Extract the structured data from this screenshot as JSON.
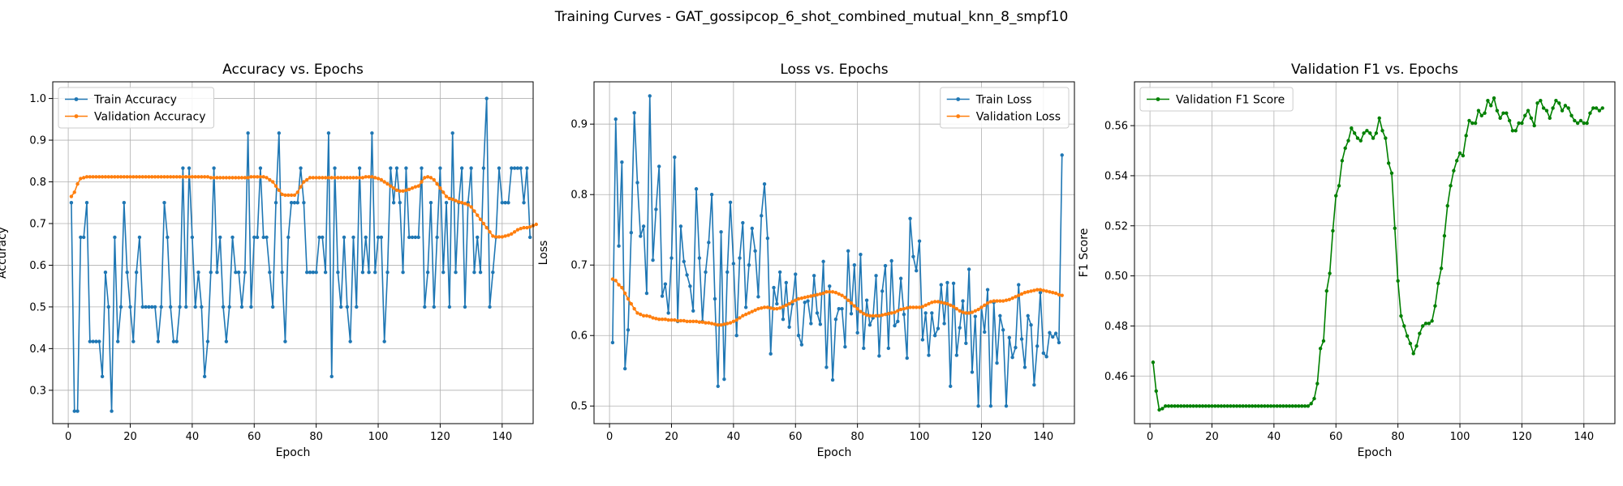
{
  "figure": {
    "title": "Training Curves - GAT_gossipcop_6_shot_combined_mutual_knn_8_smpf10"
  },
  "colors": {
    "train": "#1f77b4",
    "validation": "#ff7f0e",
    "f1": "#008000"
  },
  "chart_data": [
    {
      "type": "line",
      "title": "Accuracy vs. Epochs",
      "xlabel": "Epoch",
      "ylabel": "Accuracy",
      "xlim": [
        -5,
        150
      ],
      "ylim": [
        0.22,
        1.04
      ],
      "xticks": [
        0,
        20,
        40,
        60,
        80,
        100,
        120,
        140
      ],
      "yticks": [
        0.3,
        0.4,
        0.5,
        0.6,
        0.7,
        0.8,
        0.9,
        1.0
      ],
      "grid": true,
      "legend_position": "upper-left",
      "series": [
        {
          "name": "Train Accuracy",
          "color": "#1f77b4",
          "values": [
            0.75,
            0.25,
            0.25,
            0.667,
            0.667,
            0.75,
            0.417,
            0.417,
            0.417,
            0.417,
            0.333,
            0.583,
            0.5,
            0.25,
            0.667,
            0.417,
            0.5,
            0.75,
            0.583,
            0.5,
            0.417,
            0.583,
            0.667,
            0.5,
            0.5,
            0.5,
            0.5,
            0.5,
            0.417,
            0.5,
            0.75,
            0.667,
            0.5,
            0.417,
            0.417,
            0.5,
            0.833,
            0.5,
            0.833,
            0.667,
            0.5,
            0.583,
            0.5,
            0.333,
            0.417,
            0.583,
            0.833,
            0.583,
            0.667,
            0.5,
            0.417,
            0.5,
            0.667,
            0.583,
            0.583,
            0.5,
            0.583,
            0.917,
            0.5,
            0.667,
            0.667,
            0.833,
            0.667,
            0.667,
            0.583,
            0.5,
            0.75,
            0.917,
            0.583,
            0.417,
            0.667,
            0.75,
            0.75,
            0.75,
            0.833,
            0.75,
            0.583,
            0.583,
            0.583,
            0.583,
            0.667,
            0.667,
            0.583,
            0.917,
            0.333,
            0.833,
            0.583,
            0.5,
            0.667,
            0.5,
            0.417,
            0.667,
            0.5,
            0.833,
            0.583,
            0.667,
            0.583,
            0.917,
            0.583,
            0.667,
            0.667,
            0.417,
            0.583,
            0.833,
            0.75,
            0.833,
            0.75,
            0.583,
            0.833,
            0.667,
            0.667,
            0.667,
            0.667,
            0.833,
            0.5,
            0.583,
            0.75,
            0.5,
            0.667,
            0.833,
            0.583,
            0.75,
            0.5,
            0.917,
            0.583,
            0.75,
            0.833,
            0.5,
            0.75,
            0.833,
            0.583,
            0.667,
            0.583,
            0.833,
            1.0,
            0.5,
            0.583,
            0.667,
            0.833,
            0.75,
            0.75,
            0.75,
            0.833,
            0.833,
            0.833,
            0.833,
            0.75,
            0.833,
            0.667
          ]
        },
        {
          "name": "Validation Accuracy",
          "color": "#ff7f0e",
          "values": [
            0.765,
            0.775,
            0.795,
            0.808,
            0.81,
            0.812,
            0.812,
            0.812,
            0.812,
            0.812,
            0.812,
            0.812,
            0.812,
            0.812,
            0.812,
            0.812,
            0.812,
            0.812,
            0.812,
            0.812,
            0.812,
            0.812,
            0.812,
            0.812,
            0.812,
            0.812,
            0.812,
            0.812,
            0.812,
            0.812,
            0.812,
            0.812,
            0.812,
            0.812,
            0.812,
            0.812,
            0.812,
            0.812,
            0.812,
            0.812,
            0.812,
            0.812,
            0.812,
            0.812,
            0.812,
            0.81,
            0.81,
            0.81,
            0.81,
            0.81,
            0.81,
            0.81,
            0.81,
            0.81,
            0.81,
            0.81,
            0.81,
            0.81,
            0.812,
            0.812,
            0.812,
            0.812,
            0.812,
            0.81,
            0.805,
            0.8,
            0.79,
            0.78,
            0.77,
            0.768,
            0.768,
            0.768,
            0.768,
            0.775,
            0.788,
            0.8,
            0.805,
            0.81,
            0.81,
            0.81,
            0.81,
            0.81,
            0.81,
            0.81,
            0.81,
            0.81,
            0.81,
            0.81,
            0.81,
            0.81,
            0.81,
            0.81,
            0.81,
            0.81,
            0.81,
            0.812,
            0.812,
            0.812,
            0.81,
            0.808,
            0.805,
            0.8,
            0.795,
            0.79,
            0.785,
            0.78,
            0.778,
            0.778,
            0.78,
            0.782,
            0.785,
            0.788,
            0.79,
            0.8,
            0.81,
            0.812,
            0.81,
            0.805,
            0.795,
            0.785,
            0.775,
            0.765,
            0.76,
            0.758,
            0.755,
            0.752,
            0.75,
            0.748,
            0.745,
            0.74,
            0.73,
            0.72,
            0.71,
            0.7,
            0.69,
            0.68,
            0.67,
            0.668,
            0.668,
            0.668,
            0.67,
            0.672,
            0.675,
            0.68,
            0.685,
            0.688,
            0.69,
            0.69,
            0.692,
            0.695,
            0.698
          ]
        }
      ]
    },
    {
      "type": "line",
      "title": "Loss vs. Epochs",
      "xlabel": "Epoch",
      "ylabel": "Loss",
      "xlim": [
        -5,
        150
      ],
      "ylim": [
        0.475,
        0.96
      ],
      "xticks": [
        0,
        20,
        40,
        60,
        80,
        100,
        120,
        140
      ],
      "yticks": [
        0.5,
        0.6,
        0.7,
        0.8,
        0.9
      ],
      "grid": true,
      "legend_position": "upper-right",
      "series": [
        {
          "name": "Train Loss",
          "color": "#1f77b4",
          "values": [
            0.59,
            0.907,
            0.727,
            0.846,
            0.553,
            0.608,
            0.746,
            0.916,
            0.817,
            0.741,
            0.755,
            0.66,
            0.94,
            0.707,
            0.779,
            0.84,
            0.656,
            0.673,
            0.632,
            0.71,
            0.853,
            0.62,
            0.755,
            0.705,
            0.686,
            0.67,
            0.635,
            0.808,
            0.71,
            0.62,
            0.69,
            0.732,
            0.8,
            0.652,
            0.528,
            0.747,
            0.538,
            0.69,
            0.789,
            0.702,
            0.6,
            0.71,
            0.76,
            0.64,
            0.7,
            0.752,
            0.72,
            0.655,
            0.77,
            0.815,
            0.738,
            0.574,
            0.668,
            0.645,
            0.69,
            0.623,
            0.675,
            0.612,
            0.645,
            0.687,
            0.6,
            0.587,
            0.647,
            0.649,
            0.617,
            0.685,
            0.632,
            0.616,
            0.705,
            0.555,
            0.67,
            0.537,
            0.623,
            0.638,
            0.638,
            0.584,
            0.72,
            0.631,
            0.7,
            0.604,
            0.715,
            0.582,
            0.65,
            0.615,
            0.625,
            0.685,
            0.571,
            0.663,
            0.699,
            0.582,
            0.706,
            0.614,
            0.62,
            0.681,
            0.63,
            0.568,
            0.766,
            0.712,
            0.692,
            0.734,
            0.594,
            0.632,
            0.572,
            0.632,
            0.6,
            0.61,
            0.672,
            0.617,
            0.675,
            0.528,
            0.674,
            0.572,
            0.611,
            0.649,
            0.589,
            0.694,
            0.548,
            0.627,
            0.5,
            0.64,
            0.605,
            0.665,
            0.5,
            0.647,
            0.561,
            0.628,
            0.608,
            0.5,
            0.597,
            0.569,
            0.583,
            0.672,
            0.595,
            0.555,
            0.628,
            0.615,
            0.53,
            0.585,
            0.661,
            0.575,
            0.57,
            0.604,
            0.598,
            0.603,
            0.59,
            0.856
          ]
        },
        {
          "name": "Validation Loss",
          "color": "#ff7f0e",
          "values": [
            0.68,
            0.678,
            0.672,
            0.668,
            0.66,
            0.652,
            0.645,
            0.638,
            0.632,
            0.63,
            0.628,
            0.628,
            0.627,
            0.625,
            0.624,
            0.623,
            0.623,
            0.623,
            0.622,
            0.622,
            0.622,
            0.621,
            0.621,
            0.621,
            0.62,
            0.62,
            0.62,
            0.62,
            0.619,
            0.619,
            0.618,
            0.618,
            0.617,
            0.616,
            0.615,
            0.615,
            0.616,
            0.617,
            0.618,
            0.62,
            0.622,
            0.625,
            0.628,
            0.63,
            0.632,
            0.634,
            0.636,
            0.638,
            0.639,
            0.64,
            0.64,
            0.639,
            0.638,
            0.638,
            0.639,
            0.641,
            0.643,
            0.645,
            0.648,
            0.65,
            0.652,
            0.653,
            0.654,
            0.655,
            0.656,
            0.657,
            0.658,
            0.659,
            0.66,
            0.662,
            0.662,
            0.662,
            0.661,
            0.659,
            0.657,
            0.654,
            0.65,
            0.646,
            0.642,
            0.638,
            0.634,
            0.631,
            0.629,
            0.628,
            0.628,
            0.628,
            0.628,
            0.629,
            0.63,
            0.631,
            0.632,
            0.633,
            0.635,
            0.637,
            0.638,
            0.639,
            0.64,
            0.64,
            0.64,
            0.64,
            0.641,
            0.643,
            0.645,
            0.647,
            0.648,
            0.648,
            0.647,
            0.646,
            0.645,
            0.643,
            0.641,
            0.638,
            0.635,
            0.633,
            0.632,
            0.632,
            0.633,
            0.635,
            0.637,
            0.64,
            0.643,
            0.646,
            0.648,
            0.649,
            0.649,
            0.649,
            0.649,
            0.65,
            0.651,
            0.653,
            0.655,
            0.657,
            0.659,
            0.661,
            0.662,
            0.663,
            0.664,
            0.665,
            0.665,
            0.664,
            0.663,
            0.662,
            0.661,
            0.66,
            0.658,
            0.657
          ]
        }
      ]
    },
    {
      "type": "line",
      "title": "Validation F1 vs. Epochs",
      "xlabel": "Epoch",
      "ylabel": "F1 Score",
      "xlim": [
        -5,
        150
      ],
      "ylim": [
        0.441,
        0.5775
      ],
      "xticks": [
        0,
        20,
        40,
        60,
        80,
        100,
        120,
        140
      ],
      "yticks": [
        0.46,
        0.48,
        0.5,
        0.52,
        0.54,
        0.56
      ],
      "grid": true,
      "legend_position": "upper-left",
      "series": [
        {
          "name": "Validation F1 Score",
          "color": "#008000",
          "values": [
            0.4655,
            0.454,
            0.4465,
            0.447,
            0.448,
            0.448,
            0.448,
            0.448,
            0.448,
            0.448,
            0.448,
            0.448,
            0.448,
            0.448,
            0.448,
            0.448,
            0.448,
            0.448,
            0.448,
            0.448,
            0.448,
            0.448,
            0.448,
            0.448,
            0.448,
            0.448,
            0.448,
            0.448,
            0.448,
            0.448,
            0.448,
            0.448,
            0.448,
            0.448,
            0.448,
            0.448,
            0.448,
            0.448,
            0.448,
            0.448,
            0.448,
            0.448,
            0.448,
            0.448,
            0.448,
            0.448,
            0.448,
            0.448,
            0.448,
            0.448,
            0.448,
            0.449,
            0.451,
            0.457,
            0.471,
            0.474,
            0.494,
            0.501,
            0.518,
            0.532,
            0.536,
            0.546,
            0.551,
            0.554,
            0.559,
            0.557,
            0.555,
            0.554,
            0.557,
            0.558,
            0.557,
            0.555,
            0.557,
            0.563,
            0.558,
            0.555,
            0.545,
            0.541,
            0.519,
            0.498,
            0.484,
            0.48,
            0.476,
            0.473,
            0.469,
            0.472,
            0.477,
            0.48,
            0.481,
            0.481,
            0.482,
            0.488,
            0.497,
            0.503,
            0.516,
            0.528,
            0.536,
            0.542,
            0.546,
            0.549,
            0.548,
            0.556,
            0.562,
            0.561,
            0.561,
            0.566,
            0.564,
            0.565,
            0.57,
            0.568,
            0.571,
            0.566,
            0.563,
            0.565,
            0.565,
            0.562,
            0.558,
            0.558,
            0.561,
            0.561,
            0.564,
            0.566,
            0.563,
            0.56,
            0.569,
            0.57,
            0.567,
            0.566,
            0.563,
            0.567,
            0.57,
            0.569,
            0.566,
            0.568,
            0.567,
            0.564,
            0.562,
            0.561,
            0.562,
            0.561,
            0.561,
            0.565,
            0.567,
            0.567,
            0.566,
            0.567
          ]
        }
      ]
    }
  ]
}
